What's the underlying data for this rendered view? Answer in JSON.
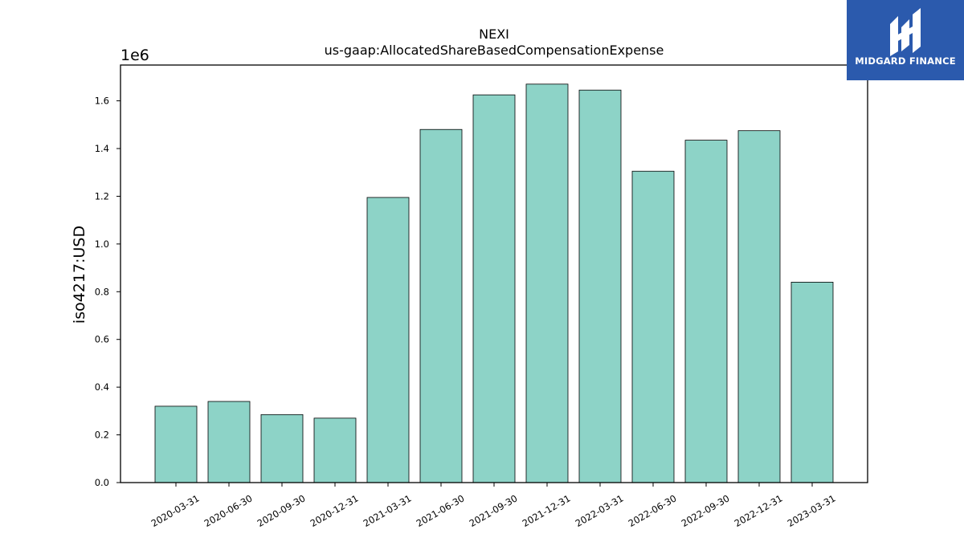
{
  "logo": {
    "text": "MIDGARD FINANCE"
  },
  "chart_data": {
    "type": "bar",
    "title": "NEXI",
    "subtitle": "us-gaap:AllocatedShareBasedCompensationExpense",
    "ylabel": "iso4217:USD",
    "xlabel": "",
    "scale_label": "1e6",
    "ylim": [
      0,
      1.75
    ],
    "yticks": [
      "0.0",
      "0.2",
      "0.4",
      "0.6",
      "0.8",
      "1.0",
      "1.2",
      "1.4",
      "1.6"
    ],
    "categories": [
      "2020-03-31",
      "2020-06-30",
      "2020-09-30",
      "2020-12-31",
      "2021-03-31",
      "2021-06-30",
      "2021-09-30",
      "2021-12-31",
      "2022-03-31",
      "2022-06-30",
      "2022-09-30",
      "2022-12-31",
      "2023-03-31"
    ],
    "values": [
      0.32,
      0.34,
      0.285,
      0.27,
      1.195,
      1.48,
      1.625,
      1.67,
      1.645,
      1.305,
      1.435,
      1.475,
      0.84
    ],
    "bar_color": "#8dd3c7",
    "edge_color": "#000000",
    "grid": false
  }
}
